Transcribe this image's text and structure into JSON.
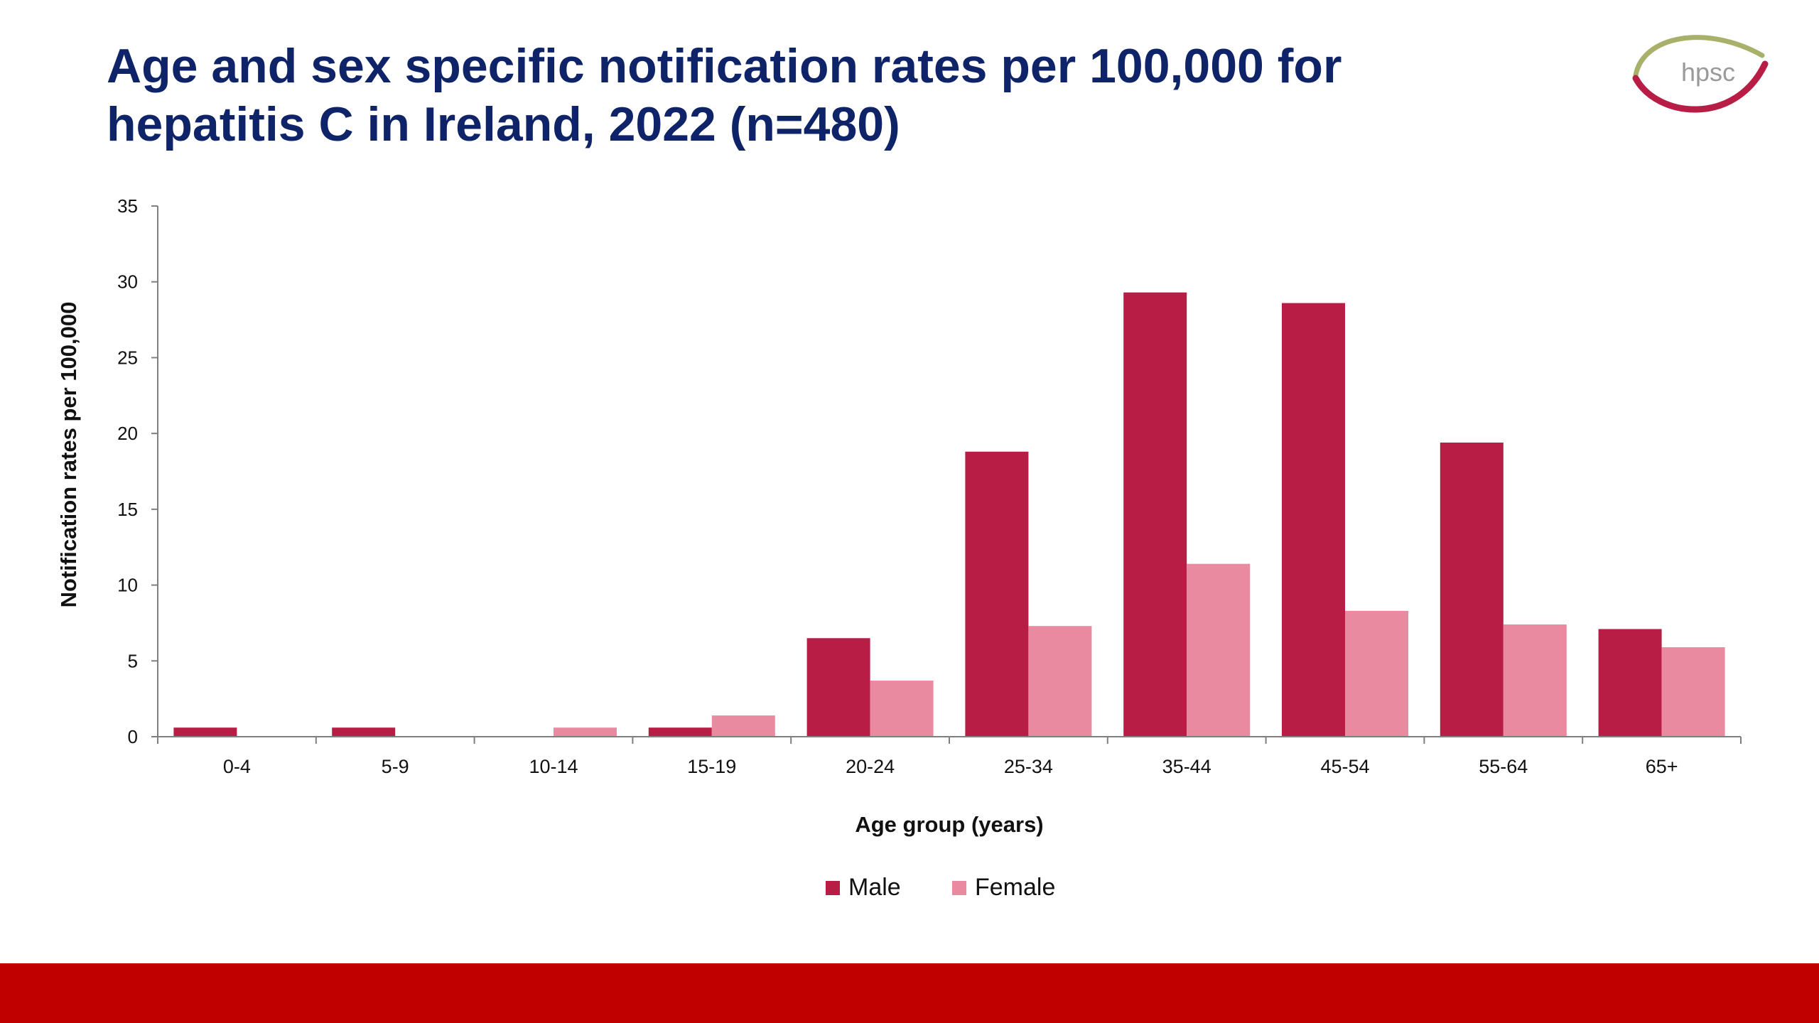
{
  "title_lines": [
    "Age and sex specific notification rates per 100,000 for",
    "hepatitis C in Ireland, 2022 (n=480)"
  ],
  "logo": {
    "text": "hpsc",
    "accent_color": "#b81d45",
    "swoosh_color": "#a9b06a"
  },
  "colors": {
    "title": "#0f2468",
    "footer_bar": "#c00000"
  },
  "chart_data": {
    "type": "bar",
    "title": "Age and sex specific notification rates per 100,000 for hepatitis C in Ireland, 2022 (n=480)",
    "xlabel": "Age group (years)",
    "ylabel": "Notification rates per 100,000",
    "ylim": [
      0,
      35
    ],
    "yticks": [
      0,
      5,
      10,
      15,
      20,
      25,
      30,
      35
    ],
    "categories": [
      "0-4",
      "5-9",
      "10-14",
      "15-19",
      "20-24",
      "25-34",
      "35-44",
      "45-54",
      "55-64",
      "65+"
    ],
    "series": [
      {
        "name": "Male",
        "color": "#b81d45",
        "values": [
          0.6,
          0.6,
          0,
          0.6,
          6.5,
          18.8,
          29.3,
          28.6,
          19.4,
          7.1
        ]
      },
      {
        "name": "Female",
        "color": "#e98aa0",
        "values": [
          0,
          0,
          0.6,
          1.4,
          3.7,
          7.3,
          11.4,
          8.3,
          7.4,
          5.9
        ]
      }
    ],
    "grid": false,
    "legend_position": "bottom-center"
  }
}
